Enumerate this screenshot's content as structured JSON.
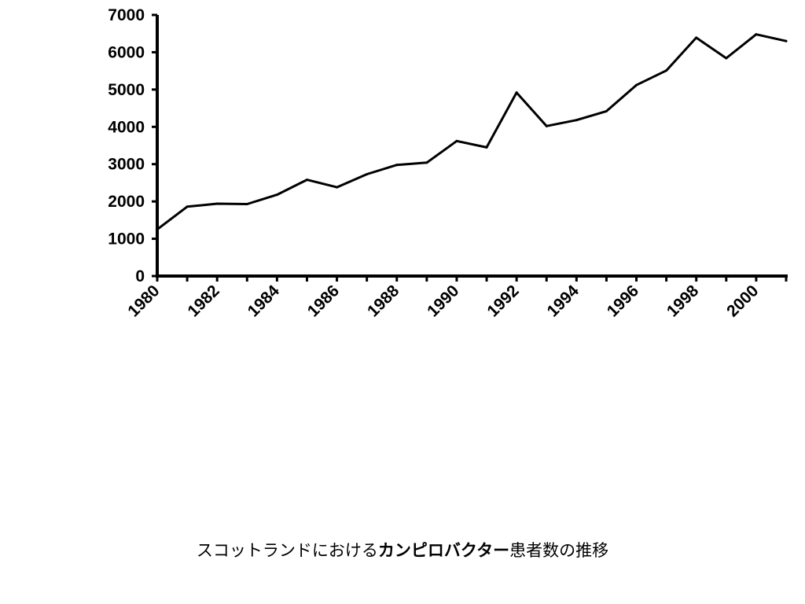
{
  "chart_data": {
    "type": "line",
    "x": [
      1980,
      1981,
      1982,
      1983,
      1984,
      1985,
      1986,
      1987,
      1988,
      1989,
      1990,
      1991,
      1992,
      1993,
      1994,
      1995,
      1996,
      1997,
      1998,
      1999,
      2000,
      2001
    ],
    "series": [
      {
        "values": [
          1250,
          1860,
          1940,
          1930,
          2180,
          2580,
          2380,
          2730,
          2980,
          3040,
          3620,
          3450,
          4920,
          4020,
          4180,
          4420,
          5120,
          5510,
          6390,
          5840,
          6480,
          6300
        ]
      }
    ],
    "xtick_labels": [
      "1980",
      "1982",
      "1984",
      "1986",
      "1988",
      "1990",
      "1992",
      "1994",
      "1996",
      "1998",
      "2000"
    ],
    "ytick_labels": [
      "0",
      "1000",
      "2000",
      "3000",
      "4000",
      "5000",
      "6000",
      "7000"
    ],
    "ylim": [
      0,
      7000
    ],
    "grid": false,
    "line_color": "#000000"
  },
  "caption": {
    "part1": "スコットランドにおける",
    "part2": "カンピロバクター",
    "part3": "患者数の推移"
  }
}
